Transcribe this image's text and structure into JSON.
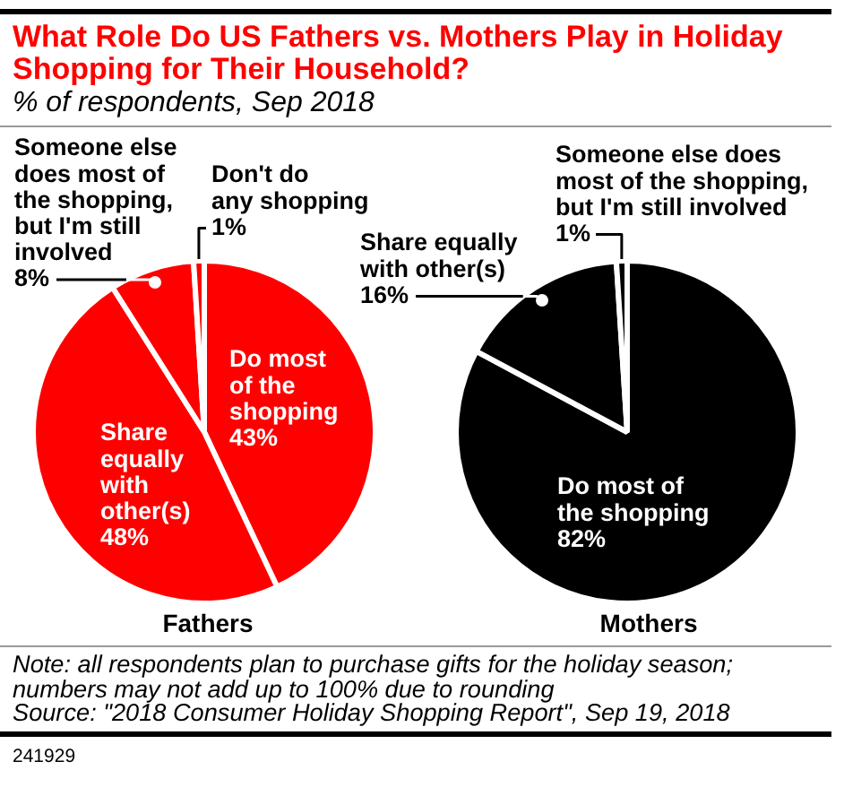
{
  "chart_data": {
    "type": "pie",
    "title": "What Role Do US Fathers vs. Mothers Play in Holiday Shopping for Their Household?",
    "subtitle": "% of respondents, Sep 2018",
    "categories": [
      "Do most of the shopping",
      "Share equally with other(s)",
      "Someone else does most of the shopping, but I'm still involved",
      "Don't do any shopping"
    ],
    "series": [
      {
        "name": "Fathers",
        "color": "#ff0000",
        "values": [
          43,
          48,
          8,
          1
        ],
        "value_labels": [
          "43%",
          "48%",
          "8%",
          "1%"
        ]
      },
      {
        "name": "Mothers",
        "color": "#000000",
        "values": [
          82,
          16,
          1,
          null
        ],
        "value_labels": [
          "82%",
          "16%",
          "1%",
          null
        ]
      }
    ],
    "annotations": [
      "Note: all respondents plan to purchase gifts for the holiday season; numbers may not add up to 100% due to rounding",
      "Source: \"2018 Consumer Holiday Shopping Report\", Sep 19, 2018",
      "241929"
    ]
  }
}
